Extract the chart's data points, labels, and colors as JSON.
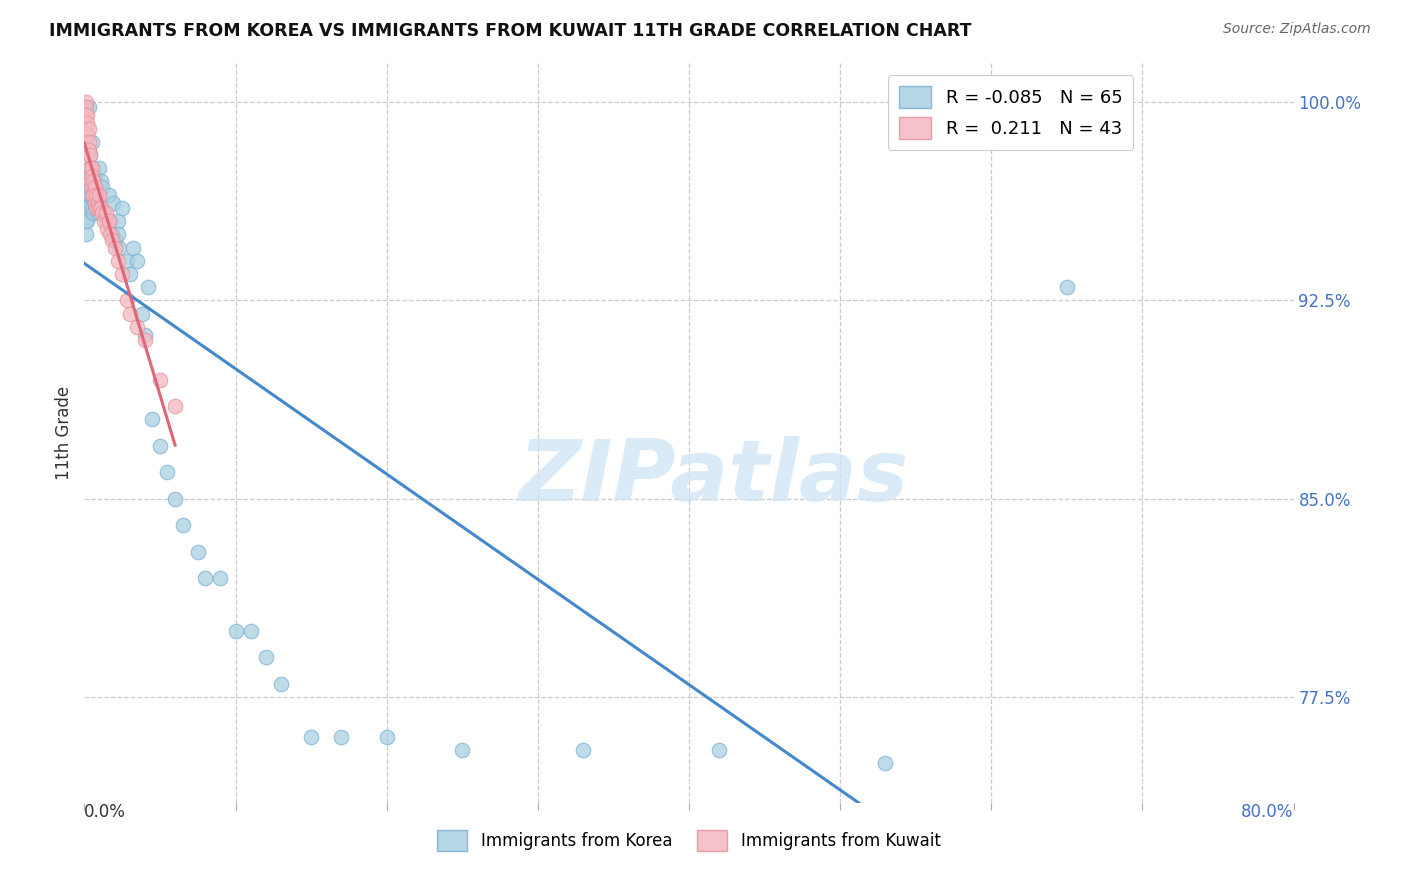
{
  "title": "IMMIGRANTS FROM KOREA VS IMMIGRANTS FROM KUWAIT 11TH GRADE CORRELATION CHART",
  "source": "Source: ZipAtlas.com",
  "ylabel": "11th Grade",
  "ytick_labels": [
    "100.0%",
    "92.5%",
    "85.0%",
    "77.5%"
  ],
  "ytick_vals": [
    1.0,
    0.925,
    0.85,
    0.775
  ],
  "xtick_left_label": "0.0%",
  "xtick_right_label": "80.0%",
  "korea_R": -0.085,
  "korea_N": 65,
  "kuwait_R": 0.211,
  "kuwait_N": 43,
  "korea_color": "#a8cfe0",
  "kuwait_color": "#f4b8c1",
  "korea_edge_color": "#7bafd4",
  "kuwait_edge_color": "#e8909a",
  "korea_line_color": "#4488cc",
  "kuwait_line_color": "#dd6677",
  "watermark_color": "#d0e4f5",
  "watermark": "ZIPatlas",
  "xlim": [
    0.0,
    0.8
  ],
  "ylim": [
    0.735,
    1.015
  ],
  "korea_x": [
    0.001,
    0.001,
    0.001,
    0.002,
    0.002,
    0.002,
    0.003,
    0.003,
    0.004,
    0.004,
    0.005,
    0.005,
    0.005,
    0.006,
    0.006,
    0.007,
    0.007,
    0.008,
    0.008,
    0.009,
    0.01,
    0.01,
    0.011,
    0.012,
    0.012,
    0.013,
    0.015,
    0.016,
    0.017,
    0.018,
    0.019,
    0.02,
    0.022,
    0.022,
    0.023,
    0.025,
    0.028,
    0.03,
    0.032,
    0.035,
    0.038,
    0.04,
    0.042,
    0.045,
    0.05,
    0.055,
    0.06,
    0.065,
    0.075,
    0.08,
    0.09,
    0.1,
    0.11,
    0.12,
    0.13,
    0.15,
    0.17,
    0.2,
    0.25,
    0.33,
    0.42,
    0.53,
    0.65,
    0.001,
    0.003
  ],
  "korea_y": [
    0.96,
    0.955,
    0.95,
    0.97,
    0.96,
    0.955,
    0.975,
    0.965,
    0.98,
    0.965,
    0.985,
    0.975,
    0.96,
    0.97,
    0.958,
    0.972,
    0.963,
    0.968,
    0.96,
    0.965,
    0.975,
    0.958,
    0.97,
    0.96,
    0.968,
    0.958,
    0.955,
    0.965,
    0.955,
    0.95,
    0.962,
    0.948,
    0.955,
    0.95,
    0.945,
    0.96,
    0.94,
    0.935,
    0.945,
    0.94,
    0.92,
    0.912,
    0.93,
    0.88,
    0.87,
    0.86,
    0.85,
    0.84,
    0.83,
    0.82,
    0.82,
    0.8,
    0.8,
    0.79,
    0.78,
    0.76,
    0.76,
    0.76,
    0.755,
    0.755,
    0.755,
    0.75,
    0.93,
    0.998,
    0.998
  ],
  "kuwait_x": [
    0.001,
    0.001,
    0.001,
    0.002,
    0.002,
    0.002,
    0.003,
    0.003,
    0.003,
    0.003,
    0.004,
    0.004,
    0.004,
    0.005,
    0.005,
    0.005,
    0.005,
    0.006,
    0.006,
    0.007,
    0.007,
    0.008,
    0.008,
    0.009,
    0.01,
    0.01,
    0.011,
    0.012,
    0.013,
    0.014,
    0.015,
    0.016,
    0.017,
    0.018,
    0.02,
    0.022,
    0.025,
    0.028,
    0.03,
    0.035,
    0.04,
    0.05,
    0.06
  ],
  "kuwait_y": [
    1.0,
    0.998,
    0.995,
    0.995,
    0.992,
    0.988,
    0.99,
    0.985,
    0.982,
    0.975,
    0.98,
    0.975,
    0.97,
    0.975,
    0.972,
    0.968,
    0.965,
    0.97,
    0.965,
    0.968,
    0.962,
    0.965,
    0.96,
    0.962,
    0.965,
    0.96,
    0.96,
    0.958,
    0.955,
    0.958,
    0.952,
    0.955,
    0.95,
    0.948,
    0.945,
    0.94,
    0.935,
    0.925,
    0.92,
    0.915,
    0.91,
    0.895,
    0.885
  ]
}
